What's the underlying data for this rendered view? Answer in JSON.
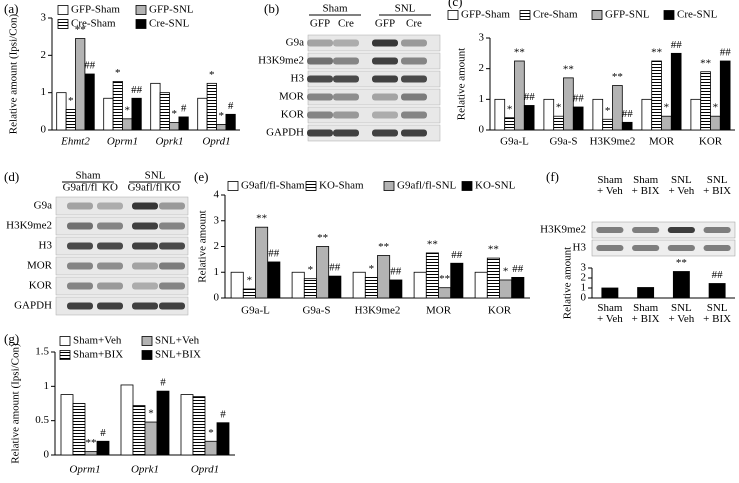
{
  "chart_data": [
    {
      "type": "bar",
      "panel": "(a)",
      "ylabel": "Relative amount (Ipsi/Con)",
      "italic_categories": true,
      "categories": [
        "Ehmt2",
        "Oprm1",
        "Oprk1",
        "Oprd1"
      ],
      "ylim": [
        0,
        3
      ],
      "yticks": [
        0,
        1,
        2,
        3
      ],
      "series": [
        {
          "name": "GFP-Sham",
          "color": "#ffffff",
          "values": [
            1.0,
            0.85,
            1.25,
            0.85
          ],
          "sig": [
            null,
            null,
            null,
            null
          ]
        },
        {
          "name": "Cre-Sham",
          "color": "#ffffff",
          "hatch": "horizontal",
          "values": [
            0.55,
            1.3,
            1.0,
            1.25
          ],
          "sig": [
            "*",
            "*",
            null,
            "*"
          ]
        },
        {
          "name": "GFP-SNL",
          "color": "#b3b3b3",
          "values": [
            2.45,
            0.3,
            0.2,
            0.15
          ],
          "sig": [
            "**",
            "*",
            "*",
            "*"
          ]
        },
        {
          "name": "Cre-SNL",
          "color": "#000000",
          "values": [
            1.5,
            0.85,
            0.35,
            0.42
          ],
          "sig": [
            "##",
            "##",
            "#",
            "#"
          ]
        }
      ]
    },
    {
      "type": "bar",
      "panel": "(c)",
      "ylabel": "Relative amount",
      "categories": [
        "G9a-L",
        "G9a-S",
        "H3K9me2",
        "MOR",
        "KOR"
      ],
      "ylim": [
        0,
        3
      ],
      "yticks": [
        0,
        1,
        2,
        3
      ],
      "series": [
        {
          "name": "GFP-Sham",
          "color": "#ffffff",
          "values": [
            1.0,
            1.0,
            1.0,
            1.0,
            1.0
          ],
          "sig": [
            null,
            null,
            null,
            null,
            null
          ]
        },
        {
          "name": "Cre-Sham",
          "color": "#ffffff",
          "hatch": "horizontal",
          "values": [
            0.4,
            0.45,
            0.35,
            2.25,
            1.9
          ],
          "sig": [
            "*",
            "*",
            "*",
            "**",
            "**"
          ]
        },
        {
          "name": "GFP-SNL",
          "color": "#b3b3b3",
          "values": [
            2.25,
            1.7,
            1.45,
            0.45,
            0.45
          ],
          "sig": [
            "**",
            "**",
            "**",
            "*",
            "*"
          ]
        },
        {
          "name": "Cre-SNL",
          "color": "#000000",
          "values": [
            0.8,
            0.75,
            0.25,
            2.5,
            2.25
          ],
          "sig": [
            "##",
            "##",
            "##",
            "##",
            "##"
          ]
        }
      ]
    },
    {
      "type": "bar",
      "panel": "(e)",
      "ylabel": "Relative amount",
      "categories": [
        "G9a-L",
        "G9a-S",
        "H3K9me2",
        "MOR",
        "KOR"
      ],
      "ylim": [
        0,
        4
      ],
      "yticks": [
        0,
        1,
        2,
        3,
        4
      ],
      "series": [
        {
          "name": "G9afl/fl-Sham",
          "color": "#ffffff",
          "values": [
            1.0,
            1.0,
            1.0,
            1.0,
            1.0
          ],
          "sig": [
            null,
            null,
            null,
            null,
            null
          ]
        },
        {
          "name": "KO-Sham",
          "color": "#ffffff",
          "hatch": "horizontal",
          "values": [
            0.35,
            0.75,
            0.8,
            1.75,
            1.55
          ],
          "sig": [
            "*",
            "*",
            "*",
            "**",
            "**"
          ]
        },
        {
          "name": "G9afl/fl-SNL",
          "color": "#b3b3b3",
          "values": [
            2.75,
            2.0,
            1.65,
            0.4,
            0.7
          ],
          "sig": [
            "**",
            "**",
            "**",
            "**",
            "*"
          ]
        },
        {
          "name": "KO-SNL",
          "color": "#000000",
          "values": [
            1.4,
            0.85,
            0.7,
            1.35,
            0.8
          ],
          "sig": [
            "##",
            "##",
            "##",
            "##",
            "##"
          ]
        }
      ]
    },
    {
      "type": "bar",
      "panel": "(f)",
      "ylabel": "Relative amount",
      "categories": [
        "Sham + Veh",
        "Sham + BIX",
        "SNL + Veh",
        "SNL + BIX"
      ],
      "ylim": [
        0,
        3
      ],
      "yticks": [
        0,
        1,
        2,
        3
      ],
      "values": [
        1.0,
        1.05,
        2.65,
        1.45
      ],
      "color": "#000000",
      "sig": [
        null,
        null,
        "**",
        "##"
      ],
      "blot_rows": [
        "H3K9me2",
        "H3"
      ]
    },
    {
      "type": "bar",
      "panel": "(g)",
      "ylabel": "Relative amount (Ipsi/Con)",
      "italic_categories": true,
      "categories": [
        "Oprm1",
        "Oprk1",
        "Oprd1"
      ],
      "ylim": [
        0,
        1.5
      ],
      "yticks": [
        0,
        0.5,
        1,
        1.5
      ],
      "series": [
        {
          "name": "Sham+Veh",
          "color": "#ffffff",
          "values": [
            0.88,
            1.02,
            0.88
          ],
          "sig": [
            null,
            null,
            null
          ]
        },
        {
          "name": "Sham+BIX",
          "color": "#ffffff",
          "hatch": "horizontal",
          "values": [
            0.75,
            0.72,
            0.85
          ],
          "sig": [
            null,
            null,
            null
          ]
        },
        {
          "name": "SNL+Veh",
          "color": "#b3b3b3",
          "values": [
            0.05,
            0.48,
            0.2
          ],
          "sig": [
            "**",
            "*",
            "*"
          ]
        },
        {
          "name": "SNL+BIX",
          "color": "#000000",
          "values": [
            0.2,
            0.93,
            0.47
          ],
          "sig": [
            "#",
            "#",
            "#"
          ]
        }
      ]
    }
  ],
  "blots": [
    {
      "panel": "(b)",
      "groups": [
        "Sham",
        "SNL"
      ],
      "lanes": [
        "GFP",
        "Cre",
        "GFP",
        "Cre"
      ],
      "rows": [
        "G9a",
        "H3K9me2",
        "H3",
        "MOR",
        "KOR",
        "GAPDH"
      ]
    },
    {
      "panel": "(d)",
      "groups": [
        "Sham",
        "SNL"
      ],
      "lanes": [
        "G9afl/fl",
        "KO",
        "G9afl/fl",
        "KO"
      ],
      "rows": [
        "G9a",
        "H3K9me2",
        "H3",
        "MOR",
        "KOR",
        "GAPDH"
      ]
    }
  ]
}
